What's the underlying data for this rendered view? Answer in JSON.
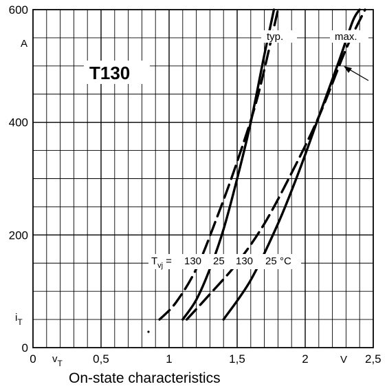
{
  "chart_data": {
    "type": "line",
    "title": "On-state characteristics",
    "model_label": "T130",
    "xlabel": "v",
    "xlabel_sub": "T",
    "x_unit": "V",
    "ylabel": "i",
    "ylabel_sub": "T",
    "y_unit": "A",
    "xlim": [
      0,
      2.5
    ],
    "ylim": [
      0,
      600
    ],
    "x_ticks": [
      "0",
      "0,5",
      "1",
      "1,5",
      "2",
      "2,5"
    ],
    "y_ticks": [
      "0",
      "200",
      "400",
      "600"
    ],
    "grid": true,
    "annotations": {
      "typ": "typ.",
      "max": "max.",
      "tvj_prefix": "T",
      "tvj_sub": "vj",
      "tvj_equals": "=",
      "temps": [
        "130",
        "25",
        "130",
        "25"
      ],
      "temp_unit": "°C"
    },
    "series": [
      {
        "curve": "typ",
        "temp": "130",
        "style": "dashed",
        "x": [
          0.93,
          1.05,
          1.2,
          1.35,
          1.5,
          1.65,
          1.8
        ],
        "y": [
          50,
          80,
          140,
          230,
          330,
          445,
          600
        ]
      },
      {
        "curve": "typ",
        "temp": "25",
        "style": "solid",
        "x": [
          1.1,
          1.2,
          1.3,
          1.4,
          1.5,
          1.6,
          1.7,
          1.77
        ],
        "y": [
          50,
          85,
          140,
          210,
          300,
          400,
          520,
          600
        ]
      },
      {
        "curve": "max",
        "temp": "130",
        "style": "dashed",
        "x": [
          1.13,
          1.3,
          1.5,
          1.7,
          1.9,
          2.1,
          2.3,
          2.44
        ],
        "y": [
          50,
          95,
          150,
          220,
          310,
          410,
          530,
          600
        ]
      },
      {
        "curve": "max",
        "temp": "25",
        "style": "solid",
        "x": [
          1.4,
          1.6,
          1.8,
          1.95,
          2.1,
          2.25,
          2.35,
          2.4
        ],
        "y": [
          50,
          120,
          220,
          310,
          410,
          510,
          580,
          600
        ]
      }
    ]
  }
}
